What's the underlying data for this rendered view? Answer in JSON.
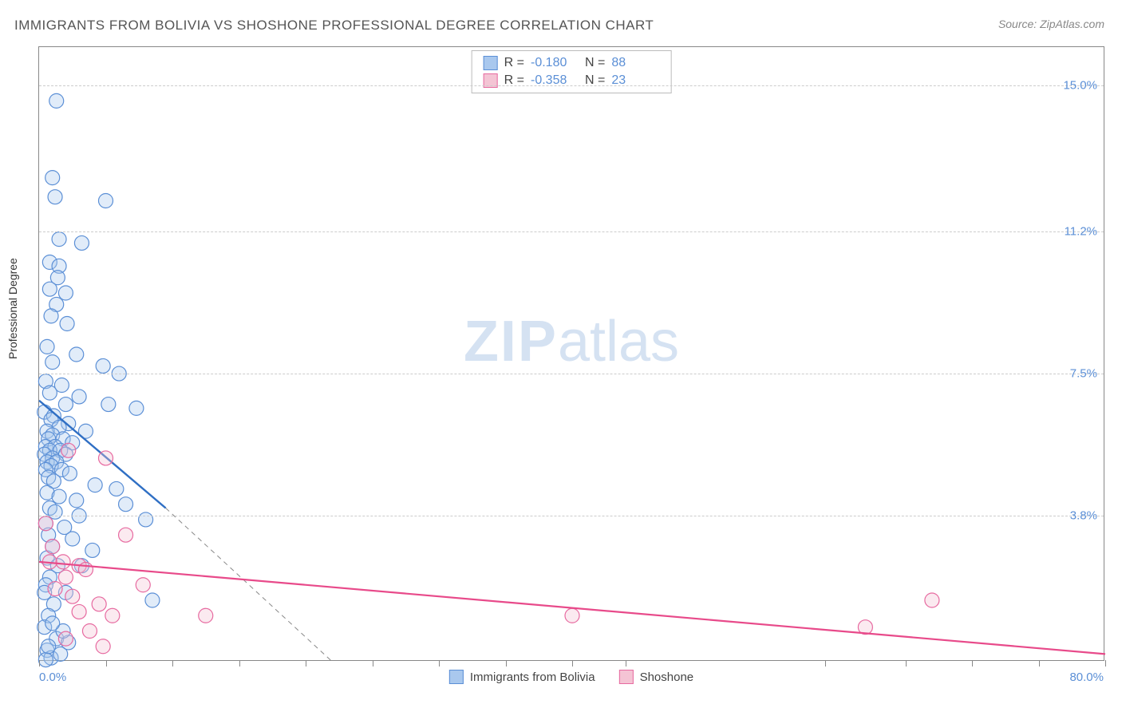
{
  "title": "IMMIGRANTS FROM BOLIVIA VS SHOSHONE PROFESSIONAL DEGREE CORRELATION CHART",
  "source": "Source: ZipAtlas.com",
  "ylabel": "Professional Degree",
  "watermark_bold": "ZIP",
  "watermark_rest": "atlas",
  "chart": {
    "type": "scatter",
    "xlim": [
      0.0,
      80.0
    ],
    "ylim": [
      0.0,
      16.0
    ],
    "x_min_label": "0.0%",
    "x_max_label": "80.0%",
    "xtick_positions": [
      0,
      5,
      10,
      15,
      20,
      25,
      30,
      35,
      40,
      44,
      59,
      65,
      70,
      75,
      80
    ],
    "ytick_labels": [
      {
        "y": 15.0,
        "label": "15.0%"
      },
      {
        "y": 11.2,
        "label": "11.2%"
      },
      {
        "y": 7.5,
        "label": "7.5%"
      },
      {
        "y": 3.8,
        "label": "3.8%"
      }
    ],
    "grid_color": "#cccccc",
    "axis_color": "#888888",
    "background_color": "#ffffff",
    "marker_radius": 9,
    "series": [
      {
        "name": "Immigrants from Bolivia",
        "color_fill": "#a9c8ee",
        "color_stroke": "#5b8fd6",
        "R_label": "R =",
        "R_value": "-0.180",
        "N_label": "N =",
        "N_value": "88",
        "trend": {
          "x1": 0.0,
          "y1": 6.8,
          "x2": 9.5,
          "y2": 4.0,
          "color": "#2f6fc4",
          "width": 2.4
        },
        "trend_ext": {
          "x1": 9.5,
          "y1": 4.0,
          "x2": 22.0,
          "y2": 0.0,
          "color": "#888888",
          "dash": "6,5",
          "width": 1
        },
        "points": [
          [
            1.3,
            14.6
          ],
          [
            1.0,
            12.6
          ],
          [
            1.2,
            12.1
          ],
          [
            5.0,
            12.0
          ],
          [
            1.5,
            11.0
          ],
          [
            3.2,
            10.9
          ],
          [
            0.8,
            10.4
          ],
          [
            1.5,
            10.3
          ],
          [
            1.4,
            10.0
          ],
          [
            0.8,
            9.7
          ],
          [
            2.0,
            9.6
          ],
          [
            1.3,
            9.3
          ],
          [
            0.9,
            9.0
          ],
          [
            2.1,
            8.8
          ],
          [
            0.6,
            8.2
          ],
          [
            2.8,
            8.0
          ],
          [
            1.0,
            7.8
          ],
          [
            4.8,
            7.7
          ],
          [
            6.0,
            7.5
          ],
          [
            0.5,
            7.3
          ],
          [
            1.7,
            7.2
          ],
          [
            0.8,
            7.0
          ],
          [
            3.0,
            6.9
          ],
          [
            2.0,
            6.7
          ],
          [
            5.2,
            6.7
          ],
          [
            7.3,
            6.6
          ],
          [
            0.4,
            6.5
          ],
          [
            1.1,
            6.4
          ],
          [
            0.9,
            6.3
          ],
          [
            2.2,
            6.2
          ],
          [
            1.5,
            6.1
          ],
          [
            0.6,
            6.0
          ],
          [
            3.5,
            6.0
          ],
          [
            1.0,
            5.9
          ],
          [
            0.7,
            5.8
          ],
          [
            1.8,
            5.8
          ],
          [
            2.5,
            5.7
          ],
          [
            0.5,
            5.6
          ],
          [
            1.2,
            5.6
          ],
          [
            0.8,
            5.5
          ],
          [
            1.6,
            5.5
          ],
          [
            0.4,
            5.4
          ],
          [
            2.0,
            5.4
          ],
          [
            1.0,
            5.3
          ],
          [
            0.6,
            5.2
          ],
          [
            1.3,
            5.2
          ],
          [
            0.9,
            5.1
          ],
          [
            1.7,
            5.0
          ],
          [
            0.5,
            5.0
          ],
          [
            2.3,
            4.9
          ],
          [
            0.7,
            4.8
          ],
          [
            1.1,
            4.7
          ],
          [
            4.2,
            4.6
          ],
          [
            5.8,
            4.5
          ],
          [
            0.6,
            4.4
          ],
          [
            1.5,
            4.3
          ],
          [
            2.8,
            4.2
          ],
          [
            6.5,
            4.1
          ],
          [
            0.8,
            4.0
          ],
          [
            1.2,
            3.9
          ],
          [
            3.0,
            3.8
          ],
          [
            8.0,
            3.7
          ],
          [
            0.5,
            3.6
          ],
          [
            1.9,
            3.5
          ],
          [
            0.7,
            3.3
          ],
          [
            2.5,
            3.2
          ],
          [
            1.0,
            3.0
          ],
          [
            4.0,
            2.9
          ],
          [
            0.6,
            2.7
          ],
          [
            1.4,
            2.5
          ],
          [
            3.2,
            2.5
          ],
          [
            0.8,
            2.2
          ],
          [
            8.5,
            1.6
          ],
          [
            0.5,
            2.0
          ],
          [
            2.0,
            1.8
          ],
          [
            1.1,
            1.5
          ],
          [
            0.7,
            1.2
          ],
          [
            0.4,
            0.9
          ],
          [
            1.3,
            0.6
          ],
          [
            0.6,
            0.3
          ],
          [
            0.9,
            0.1
          ],
          [
            1.6,
            0.2
          ],
          [
            2.2,
            0.5
          ],
          [
            0.5,
            0.05
          ],
          [
            1.8,
            0.8
          ],
          [
            0.7,
            0.4
          ],
          [
            1.0,
            1.0
          ],
          [
            0.4,
            1.8
          ]
        ]
      },
      {
        "name": "Shoshone",
        "color_fill": "#f4c4d4",
        "color_stroke": "#e76aa0",
        "R_label": "R =",
        "R_value": "-0.358",
        "N_label": "N =",
        "N_value": "23",
        "trend": {
          "x1": 0.0,
          "y1": 2.6,
          "x2": 80.0,
          "y2": 0.2,
          "color": "#e84a8a",
          "width": 2.2
        },
        "points": [
          [
            2.2,
            5.5
          ],
          [
            0.5,
            3.6
          ],
          [
            1.0,
            3.0
          ],
          [
            5.0,
            5.3
          ],
          [
            0.8,
            2.6
          ],
          [
            1.8,
            2.6
          ],
          [
            3.0,
            2.5
          ],
          [
            3.5,
            2.4
          ],
          [
            2.0,
            2.2
          ],
          [
            6.5,
            3.3
          ],
          [
            1.2,
            1.9
          ],
          [
            7.8,
            2.0
          ],
          [
            2.5,
            1.7
          ],
          [
            4.5,
            1.5
          ],
          [
            3.0,
            1.3
          ],
          [
            5.5,
            1.2
          ],
          [
            12.5,
            1.2
          ],
          [
            3.8,
            0.8
          ],
          [
            2.0,
            0.6
          ],
          [
            4.8,
            0.4
          ],
          [
            40.0,
            1.2
          ],
          [
            62.0,
            0.9
          ],
          [
            67.0,
            1.6
          ]
        ]
      }
    ]
  },
  "legend": [
    {
      "label": "Immigrants from Bolivia",
      "fill": "#a9c8ee",
      "stroke": "#5b8fd6"
    },
    {
      "label": "Shoshone",
      "fill": "#f4c4d4",
      "stroke": "#e76aa0"
    }
  ]
}
